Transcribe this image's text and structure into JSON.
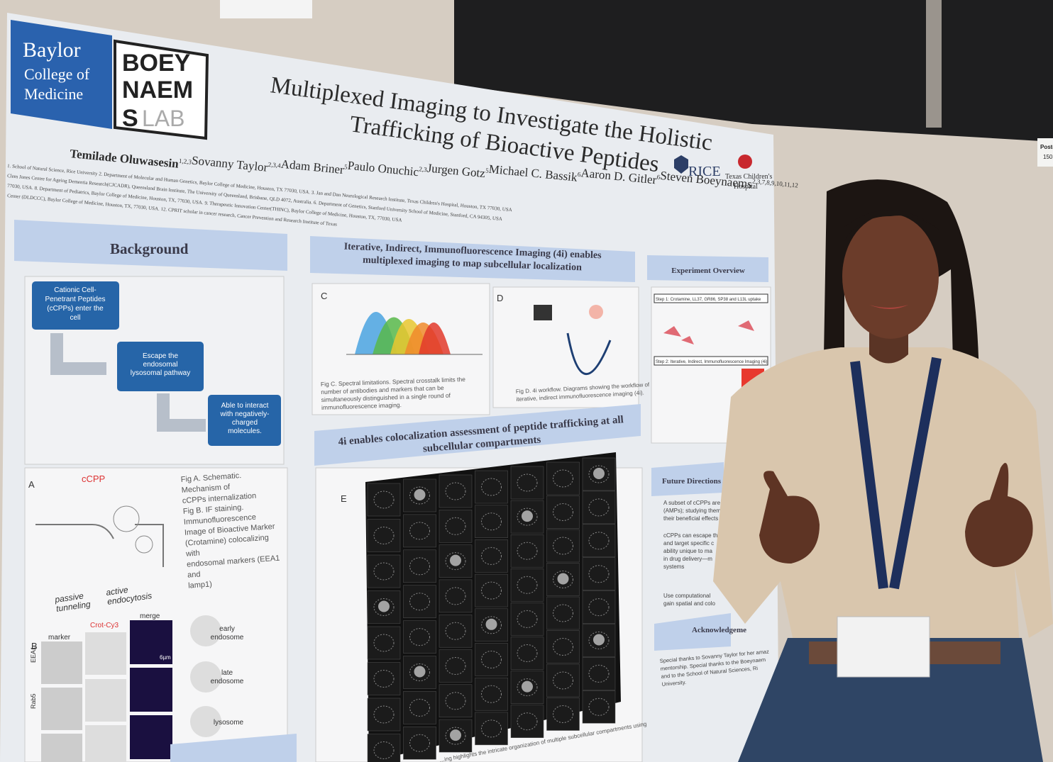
{
  "wall": {
    "sign": [
      "Poster",
      "150"
    ]
  },
  "poster": {
    "logos": {
      "baylor": [
        "Baylor",
        "College of",
        "Medicine"
      ],
      "lab": [
        "BOEY",
        "NAEM",
        "S",
        "LAB"
      ],
      "rice": "RICE",
      "tch": [
        "Texas Children's",
        "Hospital"
      ]
    },
    "title": [
      "Multiplexed Imaging to Investigate the Holistic",
      "Trafficking of Bioactive Peptides"
    ],
    "authors": [
      {
        "name": "Temilade Oluwasesin",
        "sup": "1,2,3"
      },
      {
        "name": "Sovanny Taylor",
        "sup": "2,3,4"
      },
      {
        "name": "Adam Briner",
        "sup": "5"
      },
      {
        "name": "Paulo Onuchic",
        "sup": "2,3"
      },
      {
        "name": "Jurgen Gotz",
        "sup": "5"
      },
      {
        "name": "Michael C. Bassik",
        "sup": "6"
      },
      {
        "name": "Aaron D. Gitler",
        "sup": "6"
      },
      {
        "name": "Steven Boeynaems",
        "sup": "2,3,7,8,9,10,11,12"
      }
    ],
    "affiliations": [
      "1. School of Natural Science, Rice University 2. Department of Molecular and Human Genetics, Baylor College of Medicine, Houston, TX 77030, USA. 3. Jan and Dan Neurological Research Institute, Texas Children's Hospital, Houston, TX 77030, USA",
      "Clem Jones Centre for Ageing Dementia Research(CJCADR), Queensland Brain Institute, The University of Queensland, Brisbane, QLD 4072, Australia. 6. Department of Genetics, Stanford University School of Medicine, Stanford, CA 94305, USA",
      "77030, USA. 8. Department of Pediatrics, Baylor College of Medicine, Houston, TX, 77030, USA. 9. Therapeutic Innovation Center(THINC), Baylor College of Medicine, Houston, TX, 77030, USA",
      "Center (DLDCCC), Baylor College of Medicine, Houston, TX, 77030, USA. 12. CPRIT scholar in cancer research, Cancer Prevention and Research Institute of Texas"
    ],
    "background": {
      "heading": "Background",
      "flow": [
        [
          "Cationic Cell-",
          "Penetrant Peptides",
          "(cCPPs) enter the",
          "cell"
        ],
        [
          "Escape the",
          "endosomal",
          "lysosomal pathway"
        ],
        [
          "Able to interact",
          "with negatively-",
          "charged",
          "molecules."
        ]
      ],
      "fig_a": {
        "label": "A",
        "peptide": "cCPP",
        "left": [
          "passive",
          "tunneling"
        ],
        "right": [
          "active",
          "endocytosis"
        ]
      },
      "fig_b": {
        "label": "B",
        "columns": [
          "marker",
          "Crot-Cy3",
          "merge"
        ],
        "rows": [
          "EEA1",
          "Rab5"
        ],
        "scale": "6µm",
        "stages": [
          [
            "early",
            "endosome"
          ],
          [
            "late",
            "endosome"
          ],
          [
            "lysosome"
          ]
        ]
      },
      "caption": [
        "Fig A. Schematic.",
        "Mechanism of",
        "cCPPs internalization",
        "Fig B. IF staining.",
        "Immunofluorescence",
        "Image of Bioactive Marker",
        "(Crotamine) colocalizing",
        "with",
        "endosomal markers (EEA1",
        "and",
        "lamp1)"
      ]
    },
    "imaging": {
      "heading": [
        "Iterative, Indirect, Immunofluorescence Imaging (4i) enables",
        "multiplexed imaging to map subcellular localization"
      ],
      "fig_c": {
        "label": "C",
        "caption": [
          "Fig C. Spectral limitations. Spectral crosstalk limits the",
          "number of antibodies and markers that can be",
          "simultaneously distinguished in a single round of",
          "immunofluorescence imaging."
        ]
      },
      "fig_d": {
        "label": "D",
        "caption": [
          "Fig D. 4i workflow. Diagrams showing the workflow of",
          "iterative, indirect immunofluorescence imaging (4i)."
        ]
      }
    },
    "colocalization": {
      "heading": [
        "4i enables colocalization assessment of peptide trafficking at all",
        "subcellular compartments"
      ],
      "label": "E",
      "caption": "...ing highlights the intricate organization of multiple subcellular compartments using"
    },
    "overview": {
      "heading": "Experiment Overview",
      "step1": "Step 1: Crotamine, LL37, GR86, SP38 and L13L uptake",
      "step2": "Step 2: Iterative, Indirect, Immunofluorescence Imaging (4i)"
    },
    "future": {
      "heading": "Future Directions a",
      "bullets": [
        [
          "A subset of cCPPs are also",
          "(AMPs); studying them hel",
          "their beneficial effects"
        ],
        [
          "cCPPs can escape the e",
          "and target specific c",
          "ability unique to ma",
          "in drug delivery—m",
          "systems"
        ],
        [
          "Use computational",
          "gain spatial and colo"
        ]
      ]
    },
    "acknowledgement": {
      "heading": "Acknowledgeme",
      "text": [
        "Special thanks to Sovanny Taylor for her amaz",
        "mentorship. Special thanks to the Boeynaem",
        "and to the School of Natural Sciences, Ri",
        "University."
      ]
    }
  }
}
